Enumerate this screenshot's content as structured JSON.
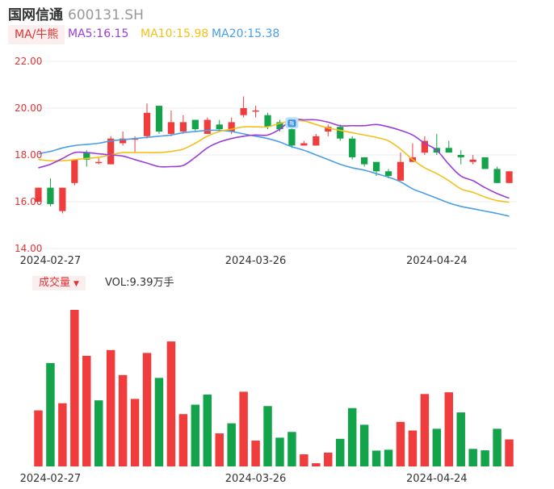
{
  "header": {
    "name": "国网信通",
    "code": "600131.SH"
  },
  "ma_bar": {
    "tab_label": "MA/牛熊",
    "ma5": "MA5:16.15",
    "ma10": "MA10:15.98",
    "ma20": "MA20:15.38"
  },
  "volume_bar": {
    "tab_label": "成交量",
    "vol": "VOL:9.39万手"
  },
  "colors": {
    "up": "#f03c3c",
    "down": "#13a34a",
    "ma5": "#9b3ddb",
    "ma10": "#f2c11a",
    "ma20": "#4a9ee8",
    "grid": "#eeeeee",
    "axis_label": "#e03333"
  },
  "chart_data": [
    {
      "type": "candlestick",
      "y_ticks": [
        "22.00",
        "20.00",
        "18.00",
        "16.00",
        "14.00"
      ],
      "ylim": [
        14,
        22
      ],
      "x_tick_labels": [
        "2024-02-27",
        "2024-03-26",
        "2024-04-24"
      ],
      "x_tick_index": [
        1,
        18,
        33
      ],
      "marker_label": "融",
      "marker_index": 21,
      "candles": [
        {
          "o": 16.0,
          "h": 16.6,
          "l": 16.0,
          "c": 16.6
        },
        {
          "o": 16.6,
          "h": 17.0,
          "l": 15.8,
          "c": 15.9
        },
        {
          "o": 15.6,
          "h": 16.6,
          "l": 15.5,
          "c": 16.6
        },
        {
          "o": 16.8,
          "h": 17.8,
          "l": 16.7,
          "c": 17.8
        },
        {
          "o": 18.1,
          "h": 18.2,
          "l": 17.5,
          "c": 17.8
        },
        {
          "o": 17.7,
          "h": 17.9,
          "l": 17.6,
          "c": 17.7
        },
        {
          "o": 17.6,
          "h": 18.8,
          "l": 17.6,
          "c": 18.7
        },
        {
          "o": 18.5,
          "h": 19.0,
          "l": 18.4,
          "c": 18.7
        },
        {
          "o": 18.7,
          "h": 18.8,
          "l": 18.1,
          "c": 18.7
        },
        {
          "o": 18.8,
          "h": 20.2,
          "l": 18.7,
          "c": 19.8
        },
        {
          "o": 20.1,
          "h": 20.1,
          "l": 18.9,
          "c": 19.0
        },
        {
          "o": 18.9,
          "h": 19.9,
          "l": 18.8,
          "c": 19.4
        },
        {
          "o": 19.0,
          "h": 19.7,
          "l": 18.9,
          "c": 19.4
        },
        {
          "o": 19.5,
          "h": 19.5,
          "l": 19.0,
          "c": 19.1
        },
        {
          "o": 18.9,
          "h": 19.6,
          "l": 18.9,
          "c": 19.5
        },
        {
          "o": 19.3,
          "h": 19.5,
          "l": 19.0,
          "c": 19.1
        },
        {
          "o": 19.0,
          "h": 19.6,
          "l": 18.9,
          "c": 19.4
        },
        {
          "o": 19.7,
          "h": 20.5,
          "l": 19.6,
          "c": 20.0
        },
        {
          "o": 19.9,
          "h": 20.1,
          "l": 19.6,
          "c": 19.9
        },
        {
          "o": 19.7,
          "h": 19.8,
          "l": 19.1,
          "c": 19.2
        },
        {
          "o": 19.4,
          "h": 19.5,
          "l": 19.0,
          "c": 19.1
        },
        {
          "o": 19.1,
          "h": 19.2,
          "l": 18.3,
          "c": 18.4
        },
        {
          "o": 18.4,
          "h": 18.6,
          "l": 18.4,
          "c": 18.5
        },
        {
          "o": 18.4,
          "h": 18.9,
          "l": 18.4,
          "c": 18.8
        },
        {
          "o": 19.0,
          "h": 19.3,
          "l": 18.8,
          "c": 19.2
        },
        {
          "o": 19.2,
          "h": 19.3,
          "l": 18.6,
          "c": 18.7
        },
        {
          "o": 18.7,
          "h": 18.8,
          "l": 17.8,
          "c": 17.9
        },
        {
          "o": 17.9,
          "h": 17.9,
          "l": 17.5,
          "c": 17.6
        },
        {
          "o": 17.7,
          "h": 17.7,
          "l": 17.1,
          "c": 17.3
        },
        {
          "o": 17.3,
          "h": 17.4,
          "l": 17.0,
          "c": 17.1
        },
        {
          "o": 16.9,
          "h": 18.1,
          "l": 16.9,
          "c": 17.7
        },
        {
          "o": 17.7,
          "h": 18.5,
          "l": 17.7,
          "c": 17.9
        },
        {
          "o": 18.1,
          "h": 18.8,
          "l": 18.0,
          "c": 18.6
        },
        {
          "o": 18.3,
          "h": 18.9,
          "l": 18.0,
          "c": 18.1
        },
        {
          "o": 18.3,
          "h": 18.6,
          "l": 18.1,
          "c": 18.1
        },
        {
          "o": 18.0,
          "h": 18.2,
          "l": 17.6,
          "c": 17.9
        },
        {
          "o": 17.7,
          "h": 18.0,
          "l": 17.6,
          "c": 17.8
        },
        {
          "o": 17.9,
          "h": 17.9,
          "l": 17.4,
          "c": 17.4
        },
        {
          "o": 17.4,
          "h": 17.5,
          "l": 16.8,
          "c": 16.8
        },
        {
          "o": 16.8,
          "h": 17.3,
          "l": 16.8,
          "c": 17.3
        }
      ],
      "ma5": [
        17.45,
        17.6,
        17.85,
        18.1,
        18.1,
        18.05,
        18.0,
        17.95,
        17.8,
        17.65,
        17.5,
        17.5,
        17.55,
        17.9,
        18.3,
        18.55,
        18.7,
        18.8,
        18.85,
        18.85,
        19.1,
        19.5,
        19.5,
        19.5,
        19.4,
        19.25,
        19.25,
        19.25,
        19.3,
        19.2,
        19.05,
        18.85,
        18.5,
        18.2,
        17.6,
        17.1,
        16.9,
        16.6,
        16.35,
        16.15
      ],
      "ma10": [
        17.8,
        17.75,
        17.75,
        17.8,
        17.85,
        17.9,
        18.0,
        18.1,
        18.1,
        18.1,
        18.1,
        18.15,
        18.25,
        18.5,
        18.8,
        19.0,
        19.1,
        19.2,
        19.2,
        19.2,
        19.35,
        19.45,
        19.45,
        19.3,
        19.15,
        19.05,
        18.95,
        18.85,
        18.75,
        18.6,
        18.25,
        17.8,
        17.45,
        17.2,
        16.9,
        16.55,
        16.4,
        16.2,
        16.05,
        15.98
      ],
      "ma20": [
        18.05,
        18.15,
        18.3,
        18.4,
        18.45,
        18.5,
        18.6,
        18.65,
        18.7,
        18.75,
        18.8,
        18.85,
        18.95,
        19.0,
        19.05,
        19.05,
        19.0,
        18.9,
        18.8,
        18.7,
        18.55,
        18.35,
        18.2,
        18.0,
        17.8,
        17.6,
        17.45,
        17.35,
        17.2,
        17.05,
        16.85,
        16.55,
        16.35,
        16.15,
        15.95,
        15.8,
        15.7,
        15.6,
        15.5,
        15.38
      ]
    },
    {
      "type": "bar",
      "title": "成交量",
      "unit": "万手",
      "last_value": 9.39,
      "volumes": [
        19.5,
        36.0,
        22.0,
        54.5,
        38.5,
        23.0,
        40.5,
        31.8,
        23.5,
        39.5,
        30.8,
        43.5,
        18.2,
        21.5,
        25.0,
        11.5,
        15.0,
        26.0,
        9.0,
        21.0,
        10.0,
        12.0,
        4.2,
        1.1,
        4.8,
        9.6,
        20.3,
        14.5,
        5.5,
        5.8,
        15.5,
        12.5,
        25.2,
        13.1,
        25.8,
        18.8,
        6.1,
        5.6,
        13.1,
        9.39
      ],
      "direction": [
        "up",
        "down",
        "up",
        "up",
        "up",
        "down",
        "up",
        "up",
        "up",
        "up",
        "down",
        "up",
        "up",
        "down",
        "down",
        "up",
        "down",
        "up",
        "up",
        "down",
        "down",
        "down",
        "up",
        "up",
        "up",
        "down",
        "down",
        "down",
        "down",
        "down",
        "up",
        "up",
        "up",
        "down",
        "up",
        "down",
        "down",
        "down",
        "down",
        "up"
      ]
    }
  ]
}
